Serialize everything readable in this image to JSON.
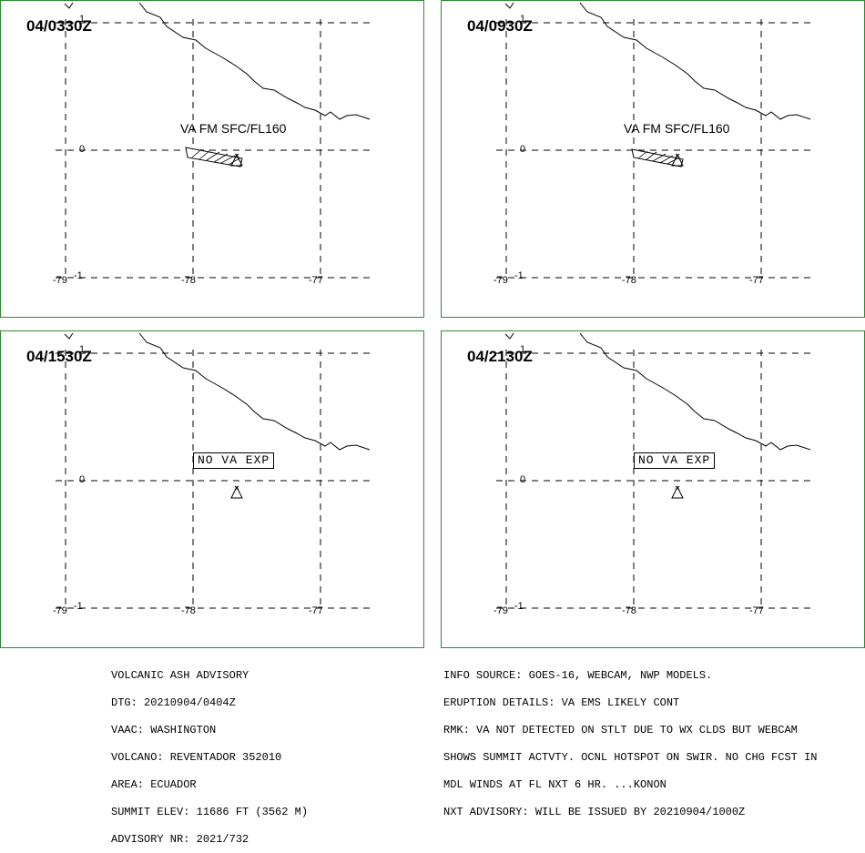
{
  "panels": [
    {
      "time": "04/0330Z",
      "ash_label": "VA FM SFC/FL160",
      "no_va": ""
    },
    {
      "time": "04/0930Z",
      "ash_label": "VA FM SFC/FL160",
      "no_va": ""
    },
    {
      "time": "04/1530Z",
      "ash_label": "",
      "no_va": "NO VA EXP"
    },
    {
      "time": "04/2130Z",
      "ash_label": "",
      "no_va": "NO VA EXP"
    }
  ],
  "map": {
    "lat_labels": [
      "1",
      "0",
      "-1"
    ],
    "lon_labels": [
      "-79",
      "-78",
      "-77"
    ],
    "volcano_icon": "volcano-triangle-icon"
  },
  "advisory_left": [
    "VOLCANIC ASH ADVISORY",
    "DTG: 20210904/0404Z",
    "VAAC: WASHINGTON",
    "VOLCANO: REVENTADOR 352010",
    "AREA: ECUADOR",
    "SUMMIT ELEV: 11686 FT (3562 M)",
    "ADVISORY NR: 2021/732"
  ],
  "advisory_right": [
    "INFO SOURCE: GOES-16, WEBCAM, NWP MODELS.",
    "ERUPTION DETAILS: VA EMS LIKELY CONT",
    "RMK: VA NOT DETECTED ON STLT DUE TO WX CLDS BUT WEBCAM",
    "SHOWS SUMMIT ACTVTY. OCNL HOTSPOT ON SWIR. NO CHG FCST IN",
    "MDL WINDS AT FL NXT 6 HR. ...KONON",
    "NXT ADVISORY: WILL BE ISSUED BY 20210904/1000Z"
  ],
  "colors": {
    "panel_border": "#2e8b2e"
  }
}
